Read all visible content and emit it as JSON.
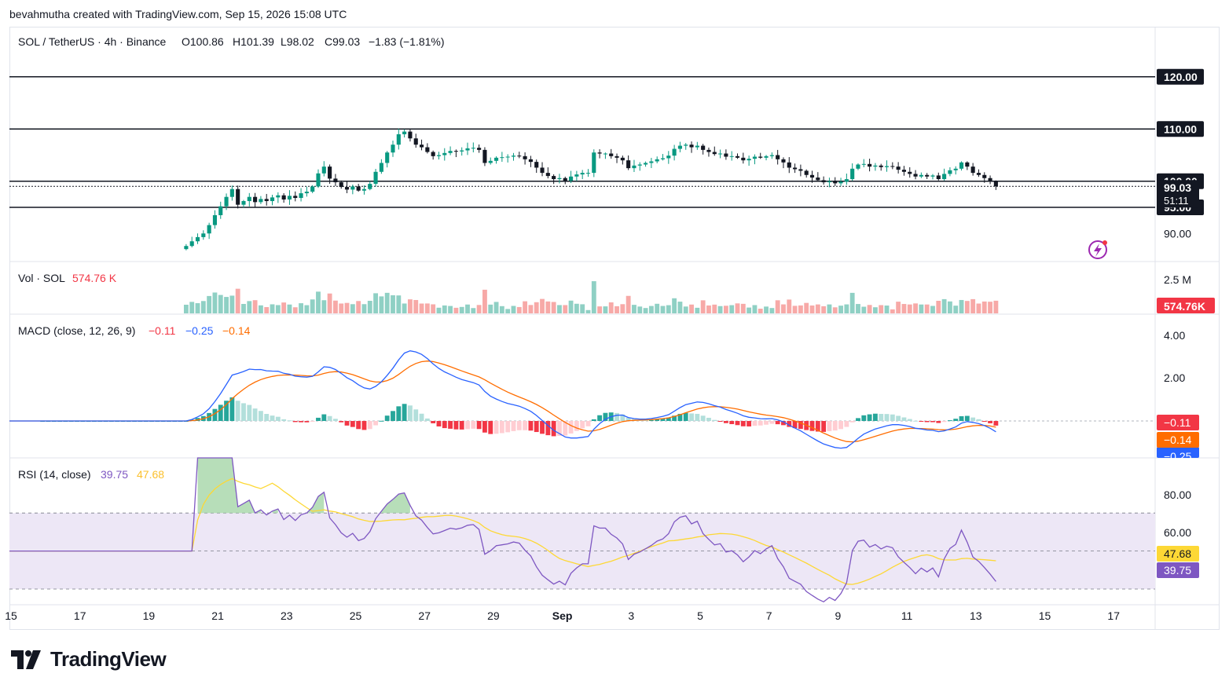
{
  "header": {
    "caption": "bevahmutha created with TradingView.com, Sep 15, 2026 15:08 UTC"
  },
  "legend": {
    "symbol": "SOL / TetherUS · 4h · Binance",
    "o": "O100.86",
    "h": "H101.39",
    "l": "L98.02",
    "c": "C99.03",
    "change": "−1.83 (−1.81%)"
  },
  "price_axis": {
    "levels": [
      {
        "value": 120,
        "label": "120.00"
      },
      {
        "value": 110,
        "label": "110.00"
      },
      {
        "value": 100,
        "label": "100.00"
      },
      {
        "value": 95,
        "label": "95.00"
      }
    ],
    "tick": {
      "value": 90,
      "label": "90.00"
    },
    "last": {
      "value": 99.03,
      "label": "99.03",
      "countdown": "51:11"
    }
  },
  "volume": {
    "title": "Vol · SOL",
    "value": "574.76 K",
    "axis_label": "2.5 M",
    "badge": "574.76K"
  },
  "macd": {
    "title": "MACD (close, 12, 26, 9)",
    "hist": "−0.11",
    "macd": "−0.25",
    "signal": "−0.14",
    "ticks": [
      "4.00",
      "2.00"
    ],
    "badges": {
      "hist": "−0.11",
      "signal": "−0.14",
      "macd": "−0.25"
    }
  },
  "rsi": {
    "title": "RSI (14, close)",
    "value": "39.75",
    "ma": "47.68",
    "ticks": [
      "80.00",
      "60.00"
    ],
    "badges": {
      "ma": "47.68",
      "rsi": "39.75"
    }
  },
  "time_axis": {
    "labels": [
      "15",
      "17",
      "19",
      "21",
      "23",
      "25",
      "27",
      "29",
      "Sep",
      "3",
      "5",
      "7",
      "9",
      "11",
      "13",
      "15",
      "17"
    ]
  },
  "logo": {
    "text": "TradingView"
  },
  "colors": {
    "up": "#089981",
    "down": "#131722",
    "vol_up": "#8fd0c4",
    "vol_down": "#f7a9a7",
    "macd": "#2962ff",
    "signal": "#ff6d00",
    "hist_up": "#26a69a",
    "hist_down": "#f23645",
    "rsi": "#7e57c2",
    "rsi_ma": "#fdd835",
    "rsi_band": "#ede7f6"
  },
  "chart_data": {
    "type": "candlestick",
    "timeframe": "4h",
    "start": "2026-08-20",
    "x_range": [
      "2026-08-15",
      "2026-09-17"
    ],
    "ylim": [
      87,
      122
    ],
    "price_path": [
      87.6,
      88.5,
      89.3,
      90.0,
      91.6,
      93.5,
      95.2,
      97.0,
      98.5,
      95.5,
      96.2,
      97.0,
      96.0,
      96.6,
      96.2,
      96.9,
      97.3,
      96.5,
      97.2,
      96.8,
      97.7,
      98.0,
      99.0,
      101.5,
      102.8,
      100.5,
      99.8,
      98.9,
      98.4,
      99.0,
      98.2,
      98.5,
      99.5,
      101.8,
      103.5,
      105.5,
      107.0,
      109.0,
      109.5,
      108.2,
      107.0,
      106.5,
      105.6,
      104.8,
      105.0,
      105.4,
      105.8,
      105.7,
      105.9,
      106.3,
      106.4,
      106.0,
      103.5,
      103.9,
      104.5,
      104.6,
      104.7,
      104.9,
      104.8,
      104.2,
      103.7,
      102.6,
      101.6,
      101.0,
      100.4,
      100.6,
      100.1,
      100.9,
      101.3,
      101.6,
      101.6,
      105.5,
      105.3,
      105.3,
      104.8,
      104.5,
      104.0,
      102.5,
      103.0,
      103.2,
      103.5,
      103.8,
      104.2,
      104.4,
      104.9,
      106.2,
      106.8,
      107.0,
      106.5,
      106.8,
      106.0,
      105.6,
      105.2,
      105.3,
      104.7,
      104.8,
      104.5,
      104.0,
      104.3,
      104.7,
      104.5,
      104.8,
      105.0,
      104.2,
      103.6,
      102.6,
      102.3,
      102.0,
      101.2,
      100.7,
      100.2,
      99.8,
      100.0,
      99.6,
      99.9,
      100.4,
      102.4,
      103.2,
      103.3,
      102.8,
      103.0,
      102.7,
      102.9,
      102.8,
      102.2,
      101.8,
      101.4,
      100.9,
      101.2,
      100.9,
      101.1,
      100.4,
      101.4,
      102.1,
      102.4,
      103.6,
      102.8,
      101.6,
      101.2,
      100.6,
      99.9,
      99.03
    ],
    "price_series_note": "approximate close prices, 4h candles"
  }
}
